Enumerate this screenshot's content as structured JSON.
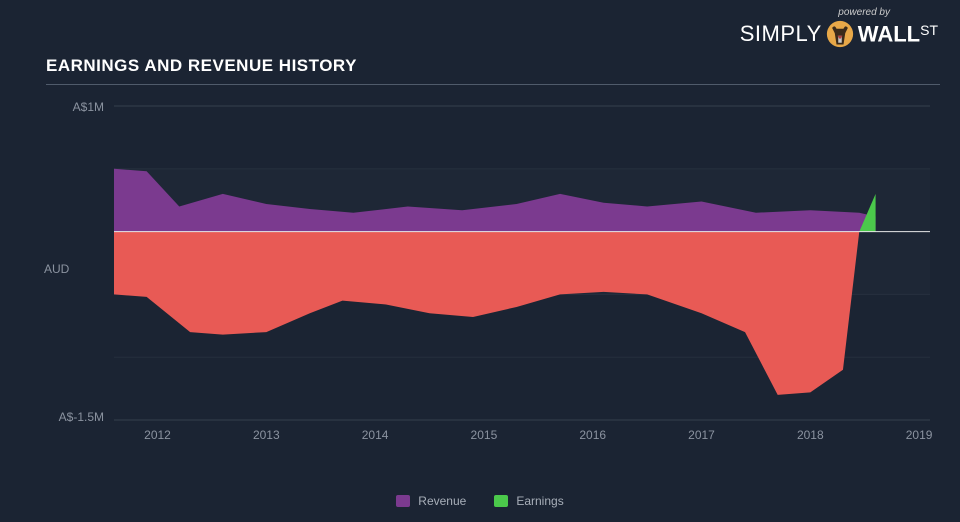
{
  "branding": {
    "powered_by": "powered by",
    "brand_part1": "SIMPLY",
    "brand_part2": "WALL",
    "brand_part3": "ST"
  },
  "chart": {
    "title": "EARNINGS AND REVENUE HISTORY",
    "type": "area",
    "background_color": "#1b2433",
    "plot_background": "#1b2433",
    "gridline_color": "#3a4252",
    "axis_text_color": "#8b93a0",
    "title_fontsize": 17,
    "label_fontsize": 12,
    "y_axis": {
      "title": "AUD",
      "min": -1.5,
      "max": 1.0,
      "ticks": [
        {
          "value": 1.0,
          "label": "A$1M"
        },
        {
          "value": -1.5,
          "label": "A$-1.5M"
        }
      ],
      "zero_line_color": "#e8e8e8"
    },
    "x_axis": {
      "min": 2011.6,
      "max": 2019.1,
      "ticks": [
        2012,
        2013,
        2014,
        2015,
        2016,
        2017,
        2018,
        2019
      ]
    },
    "series": [
      {
        "name": "Revenue",
        "color": "#7b3a8f",
        "fill_opacity": 1.0,
        "data": [
          {
            "x": 2011.6,
            "y": 0.5
          },
          {
            "x": 2011.9,
            "y": 0.48
          },
          {
            "x": 2012.2,
            "y": 0.2
          },
          {
            "x": 2012.6,
            "y": 0.3
          },
          {
            "x": 2013.0,
            "y": 0.22
          },
          {
            "x": 2013.4,
            "y": 0.18
          },
          {
            "x": 2013.8,
            "y": 0.15
          },
          {
            "x": 2014.3,
            "y": 0.2
          },
          {
            "x": 2014.8,
            "y": 0.17
          },
          {
            "x": 2015.3,
            "y": 0.22
          },
          {
            "x": 2015.7,
            "y": 0.3
          },
          {
            "x": 2016.1,
            "y": 0.23
          },
          {
            "x": 2016.5,
            "y": 0.2
          },
          {
            "x": 2017.0,
            "y": 0.24
          },
          {
            "x": 2017.5,
            "y": 0.15
          },
          {
            "x": 2018.0,
            "y": 0.17
          },
          {
            "x": 2018.45,
            "y": 0.15
          },
          {
            "x": 2018.6,
            "y": 0.12
          }
        ]
      },
      {
        "name": "Earnings",
        "color_negative": "#e85a55",
        "color_positive": "#4bc94b",
        "fill_opacity": 1.0,
        "data": [
          {
            "x": 2011.6,
            "y": -0.5
          },
          {
            "x": 2011.9,
            "y": -0.52
          },
          {
            "x": 2012.3,
            "y": -0.8
          },
          {
            "x": 2012.6,
            "y": -0.82
          },
          {
            "x": 2013.0,
            "y": -0.8
          },
          {
            "x": 2013.4,
            "y": -0.65
          },
          {
            "x": 2013.7,
            "y": -0.55
          },
          {
            "x": 2014.1,
            "y": -0.58
          },
          {
            "x": 2014.5,
            "y": -0.65
          },
          {
            "x": 2014.9,
            "y": -0.68
          },
          {
            "x": 2015.3,
            "y": -0.6
          },
          {
            "x": 2015.7,
            "y": -0.5
          },
          {
            "x": 2016.1,
            "y": -0.48
          },
          {
            "x": 2016.5,
            "y": -0.5
          },
          {
            "x": 2017.0,
            "y": -0.65
          },
          {
            "x": 2017.4,
            "y": -0.8
          },
          {
            "x": 2017.7,
            "y": -1.3
          },
          {
            "x": 2018.0,
            "y": -1.28
          },
          {
            "x": 2018.3,
            "y": -1.1
          },
          {
            "x": 2018.45,
            "y": 0.0
          },
          {
            "x": 2018.6,
            "y": 0.3
          }
        ]
      }
    ],
    "legend": {
      "position": "bottom-center",
      "items": [
        {
          "label": "Revenue",
          "color": "#7b3a8f"
        },
        {
          "label": "Earnings",
          "color": "#4bc94b"
        }
      ]
    }
  }
}
